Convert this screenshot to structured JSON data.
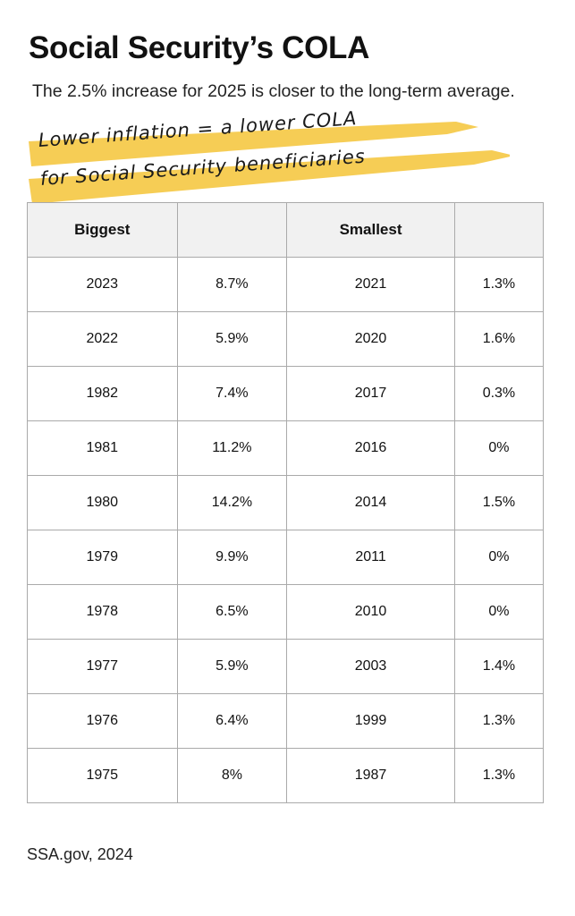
{
  "title": "Social Security’s COLA",
  "subtitle": "The 2.5% increase for 2025 is closer to the long-term average.",
  "annotation": {
    "line1": "Lower inflation = a lower COLA",
    "line2": "for Social Security beneficiaries",
    "highlight_color": "#f5c842"
  },
  "source": "SSA.gov, 2024",
  "chart_data": {
    "type": "table",
    "columns": [
      "Biggest",
      "",
      "Smallest",
      ""
    ],
    "header_color": "#f1f1f1",
    "rows": [
      [
        "2023",
        "8.7%",
        "2021",
        "1.3%"
      ],
      [
        "2022",
        "5.9%",
        "2020",
        "1.6%"
      ],
      [
        "1982",
        "7.4%",
        "2017",
        "0.3%"
      ],
      [
        "1981",
        "11.2%",
        "2016",
        "0%"
      ],
      [
        "1980",
        "14.2%",
        "2014",
        "1.5%"
      ],
      [
        "1979",
        "9.9%",
        "2011",
        "0%"
      ],
      [
        "1978",
        "6.5%",
        "2010",
        "0%"
      ],
      [
        "1977",
        "5.9%",
        "2003",
        "1.4%"
      ],
      [
        "1976",
        "6.4%",
        "1999",
        "1.3%"
      ],
      [
        "1975",
        "8%",
        "1987",
        "1.3%"
      ]
    ]
  }
}
